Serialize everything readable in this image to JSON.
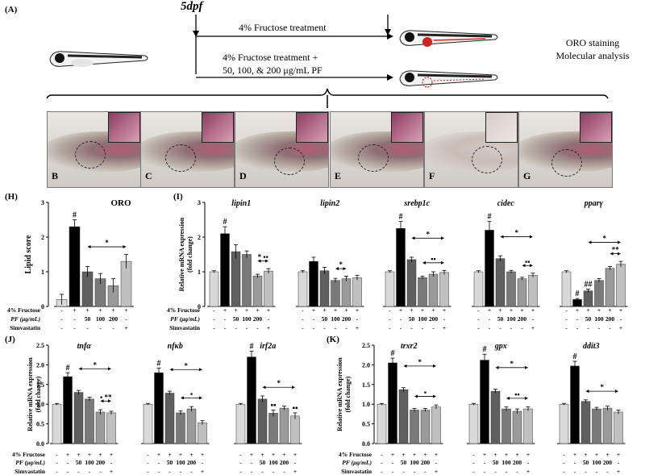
{
  "header": {
    "panel_a": "(A)",
    "dpf": "5dpf",
    "treatment_1": "4% Fructose  treatment",
    "treatment_2_line1": "4% Fructose treatment +",
    "treatment_2_line2": "50, 100, & 200 μg/mL PF",
    "analysis_line1": "ORO staining",
    "analysis_line2": "Molecular analysis"
  },
  "micrographs": [
    "B",
    "C",
    "D",
    "E",
    "F",
    "G"
  ],
  "row_labels": {
    "fructose": "4% Fructose",
    "pf": "PF (μg/mL)",
    "simvastatin": "Simvastatin"
  },
  "treatment_columns": [
    {
      "fructose": "-",
      "pf": "-",
      "simvastatin": "-"
    },
    {
      "fructose": "+",
      "pf": "-",
      "simvastatin": "-"
    },
    {
      "fructose": "+",
      "pf": "50",
      "simvastatin": "-"
    },
    {
      "fructose": "+",
      "pf": "100",
      "simvastatin": "-"
    },
    {
      "fructose": "+",
      "pf": "200",
      "simvastatin": "-"
    },
    {
      "fructose": "+",
      "pf": "-",
      "simvastatin": "+"
    }
  ],
  "bar_colors": [
    "#d9d9d9",
    "#000000",
    "#5f5f5f",
    "#7a7a7a",
    "#9a9a9a",
    "#c0c0c0"
  ],
  "chart_data": [
    {
      "panel": "(H)",
      "type": "bar",
      "title": "ORO",
      "ylabel": "Lipid score",
      "ylim": [
        0,
        3
      ],
      "yticks": [
        0,
        1,
        2,
        3
      ],
      "groups": [
        {
          "name": "ORO",
          "values": [
            0.2,
            2.3,
            1.0,
            0.8,
            0.6,
            1.3
          ],
          "errors": [
            0.15,
            0.2,
            0.15,
            0.15,
            0.2,
            0.2
          ],
          "labels": [
            "",
            "#",
            "",
            "",
            "",
            ""
          ],
          "brackets": [
            {
              "from": 2,
              "to": 5,
              "text": "*"
            }
          ]
        }
      ]
    },
    {
      "panel": "(I)",
      "type": "bar",
      "ylabel": "Relative mRNA expression\n(fold change)",
      "ylim": [
        0,
        3
      ],
      "yticks": [
        0,
        1,
        2,
        3
      ],
      "groups": [
        {
          "name": "lipin1",
          "values": [
            1.0,
            2.1,
            1.58,
            1.5,
            0.88,
            1.02
          ],
          "errors": [
            0.03,
            0.2,
            0.2,
            0.1,
            0.05,
            0.07
          ],
          "labels": [
            "",
            "#",
            "",
            "",
            "",
            ""
          ],
          "brackets": [
            {
              "from": 4,
              "to": 5,
              "text": "* ▪▪"
            }
          ]
        },
        {
          "name": "lipin2",
          "values": [
            1.0,
            1.3,
            1.03,
            0.75,
            0.8,
            0.83
          ],
          "errors": [
            0.03,
            0.12,
            0.1,
            0.06,
            0.07,
            0.07
          ],
          "labels": [
            "",
            "",
            "",
            "",
            "",
            ""
          ],
          "brackets": [
            {
              "from": 3,
              "to": 4,
              "text": "*"
            }
          ]
        },
        {
          "name": "srebp1c",
          "values": [
            1.0,
            2.25,
            1.35,
            0.83,
            0.93,
            0.98
          ],
          "errors": [
            0.03,
            0.2,
            0.07,
            0.04,
            0.07,
            0.06
          ],
          "labels": [
            "",
            "#",
            "",
            "",
            "",
            ""
          ],
          "brackets": [
            {
              "from": 2,
              "to": 5,
              "text": "*"
            },
            {
              "from": 3,
              "to": 5,
              "text": "▪▪"
            }
          ]
        },
        {
          "name": "cidec",
          "values": [
            1.0,
            2.2,
            1.38,
            1.0,
            0.8,
            0.9
          ],
          "errors": [
            0.03,
            0.25,
            0.08,
            0.04,
            0.04,
            0.06
          ],
          "labels": [
            "",
            "#",
            "",
            "",
            "",
            ""
          ],
          "brackets": [
            {
              "from": 2,
              "to": 5,
              "text": "*"
            },
            {
              "from": 4,
              "to": 5,
              "text": "▪▪"
            }
          ]
        },
        {
          "name": "pparγ",
          "values": [
            1.0,
            0.2,
            0.45,
            0.75,
            1.1,
            1.22
          ],
          "errors": [
            0.03,
            0.03,
            0.05,
            0.05,
            0.05,
            0.08
          ],
          "labels": [
            "",
            "#",
            "##",
            "",
            "",
            ""
          ],
          "brackets": [
            {
              "from": 2,
              "to": 5,
              "text": "*"
            },
            {
              "from": 4,
              "to": 5,
              "text": "**"
            }
          ]
        }
      ]
    },
    {
      "panel": "(J)",
      "type": "bar",
      "ylabel": "Relative mRNA expression\n(fold change)",
      "ylim": [
        0,
        2.5
      ],
      "yticks": [
        0,
        0.5,
        1.0,
        1.5,
        2.0,
        2.5
      ],
      "groups": [
        {
          "name": "tnfα",
          "values": [
            1.0,
            1.7,
            1.3,
            1.13,
            0.8,
            0.78
          ],
          "errors": [
            0.02,
            0.1,
            0.05,
            0.05,
            0.06,
            0.04
          ],
          "labels": [
            "",
            "#",
            "",
            "",
            "",
            ""
          ],
          "brackets": [
            {
              "from": 2,
              "to": 5,
              "text": "*"
            },
            {
              "from": 4,
              "to": 5,
              "text": "▪ **"
            }
          ]
        },
        {
          "name": "nfκb",
          "values": [
            1.0,
            1.8,
            1.28,
            0.78,
            0.88,
            0.53
          ],
          "errors": [
            0.02,
            0.12,
            0.05,
            0.05,
            0.06,
            0.05
          ],
          "labels": [
            "",
            "#",
            "",
            "",
            "",
            ""
          ],
          "brackets": [
            {
              "from": 2,
              "to": 5,
              "text": "*"
            },
            {
              "from": 3,
              "to": 5,
              "text": "▪"
            }
          ]
        },
        {
          "name": "irf2a",
          "values": [
            1.0,
            2.2,
            1.13,
            0.77,
            0.9,
            0.7
          ],
          "errors": [
            0.02,
            0.15,
            0.08,
            0.08,
            0.05,
            0.08
          ],
          "labels": [
            "",
            "#",
            "",
            "▪▪",
            "",
            "▪▪"
          ],
          "brackets": [
            {
              "from": 2,
              "to": 5,
              "text": "*"
            }
          ]
        }
      ]
    },
    {
      "panel": "(K)",
      "type": "bar",
      "ylabel": "Relative mRNA expression\n(fold change)",
      "ylim": [
        0,
        2.5
      ],
      "yticks": [
        0,
        0.5,
        1.0,
        1.5,
        2.0,
        2.5
      ],
      "groups": [
        {
          "name": "trxr2",
          "values": [
            1.0,
            2.05,
            1.37,
            0.85,
            0.85,
            0.93
          ],
          "errors": [
            0.02,
            0.12,
            0.05,
            0.04,
            0.04,
            0.05
          ],
          "labels": [
            "",
            "#",
            "",
            "",
            "",
            ""
          ],
          "brackets": [
            {
              "from": 2,
              "to": 5,
              "text": "*"
            },
            {
              "from": 3,
              "to": 5,
              "text": "▪"
            }
          ]
        },
        {
          "name": "gpx",
          "values": [
            1.0,
            2.12,
            1.33,
            0.88,
            0.82,
            0.88
          ],
          "errors": [
            0.02,
            0.15,
            0.05,
            0.05,
            0.06,
            0.05
          ],
          "labels": [
            "",
            "#",
            "",
            "",
            "",
            ""
          ],
          "brackets": [
            {
              "from": 2,
              "to": 5,
              "text": "*"
            },
            {
              "from": 3,
              "to": 5,
              "text": "▪▪"
            }
          ]
        },
        {
          "name": "ddit3",
          "values": [
            1.0,
            1.97,
            1.07,
            0.88,
            0.9,
            0.8
          ],
          "errors": [
            0.02,
            0.12,
            0.04,
            0.04,
            0.05,
            0.05
          ],
          "labels": [
            "",
            "#",
            "",
            "",
            "",
            ""
          ],
          "brackets": [
            {
              "from": 2,
              "to": 5,
              "text": "*"
            }
          ]
        }
      ]
    }
  ]
}
